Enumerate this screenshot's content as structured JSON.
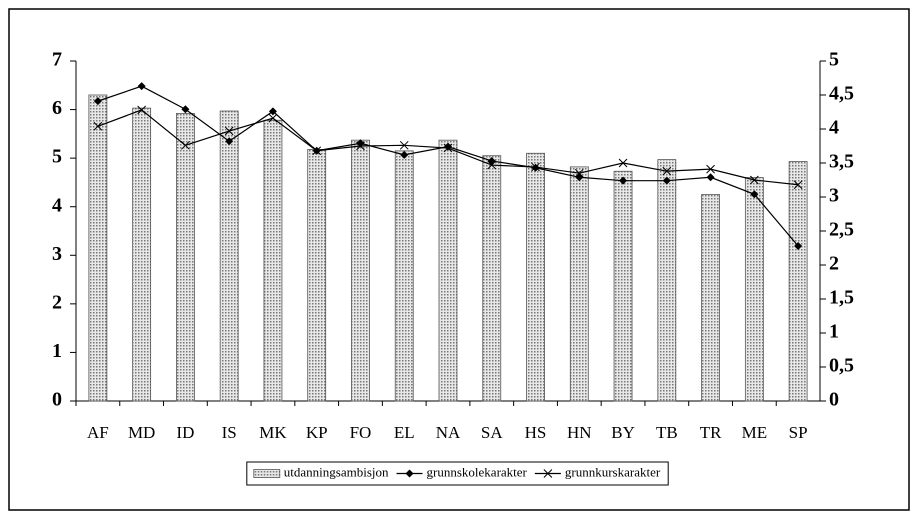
{
  "chart_data": {
    "type": "bar",
    "categories": [
      "AF",
      "MD",
      "ID",
      "IS",
      "MK",
      "KP",
      "FO",
      "EL",
      "NA",
      "SA",
      "HS",
      "HN",
      "BY",
      "TB",
      "TR",
      "ME",
      "SP"
    ],
    "series": [
      {
        "name": "utdanningsambisjon",
        "type": "bar",
        "color": "#bdbdbd",
        "values": [
          6.3,
          6.03,
          5.92,
          5.97,
          5.78,
          5.18,
          5.37,
          5.15,
          5.37,
          5.05,
          5.1,
          4.82,
          4.73,
          4.97,
          4.25,
          4.6,
          4.93
        ]
      },
      {
        "name": "grunnskolekarakter",
        "type": "line",
        "marker": "diamond",
        "axis": "y2",
        "color": "#000000",
        "values": [
          4.41,
          4.63,
          4.29,
          3.82,
          4.26,
          3.68,
          3.79,
          3.62,
          3.74,
          3.53,
          3.43,
          3.29,
          3.24,
          3.24,
          3.29,
          3.04,
          2.28
        ]
      },
      {
        "name": "grunnkurskarakter",
        "type": "line",
        "marker": "x",
        "axis": "y2",
        "color": "#000000",
        "values": [
          4.04,
          4.28,
          3.76,
          3.97,
          4.16,
          3.68,
          3.75,
          3.76,
          3.72,
          3.47,
          3.44,
          3.35,
          3.5,
          3.38,
          3.41,
          3.25,
          3.18
        ]
      }
    ],
    "ylim": [
      0,
      7
    ],
    "yticks": [
      0,
      1,
      2,
      3,
      4,
      5,
      6,
      7
    ],
    "y2lim": [
      0,
      5
    ],
    "y2ticks": [
      0,
      {
        "value": 0.5,
        "label": "0,5"
      },
      1,
      {
        "value": 1.5,
        "label": "1,5"
      },
      2,
      {
        "value": 2.5,
        "label": "2,5"
      },
      3,
      {
        "value": 3.5,
        "label": "3,5"
      },
      4,
      {
        "value": 4.5,
        "label": "4,5"
      },
      5
    ],
    "legend": "bottom"
  }
}
